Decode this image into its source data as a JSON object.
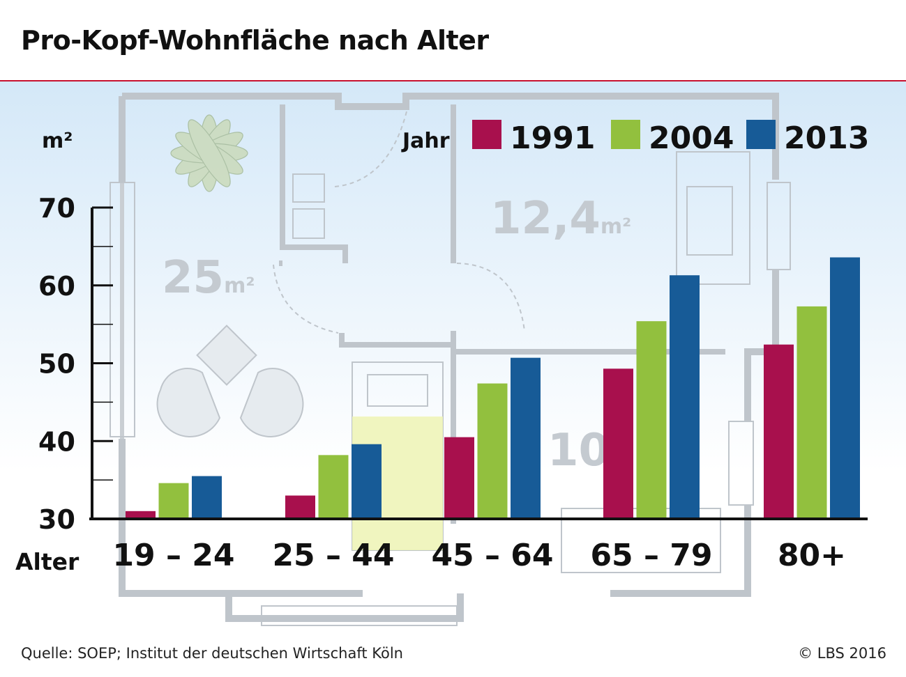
{
  "title": "Pro-Kopf-Wohnfläche nach Alter",
  "source": "Quelle: SOEP; Institut der deutschen Wirtschaft Köln",
  "copyright": "© LBS 2016",
  "floorplan_labels": {
    "room1": "25",
    "room2": "12,4",
    "room3": "10,",
    "unit": "m²"
  },
  "colors": {
    "series_1991": "#a8104d",
    "series_2004": "#92c03e",
    "series_2013": "#175b97",
    "accent": "#c8102e"
  },
  "chart_data": {
    "type": "bar",
    "ylabel": "m²",
    "xlabel": "Alter",
    "legend_title": "Jahr",
    "legend_position": "top-right",
    "ylim": [
      30,
      70
    ],
    "yticks": [
      30,
      40,
      50,
      60,
      70
    ],
    "categories": [
      "19 – 24",
      "25 – 44",
      "45 – 64",
      "65 – 79",
      "80+"
    ],
    "series": [
      {
        "name": "1991",
        "values": [
          31.0,
          33.0,
          40.5,
          49.3,
          52.4
        ]
      },
      {
        "name": "2004",
        "values": [
          34.6,
          38.2,
          47.4,
          55.4,
          57.3
        ]
      },
      {
        "name": "2013",
        "values": [
          35.5,
          39.6,
          50.7,
          61.3,
          63.6
        ]
      }
    ]
  }
}
